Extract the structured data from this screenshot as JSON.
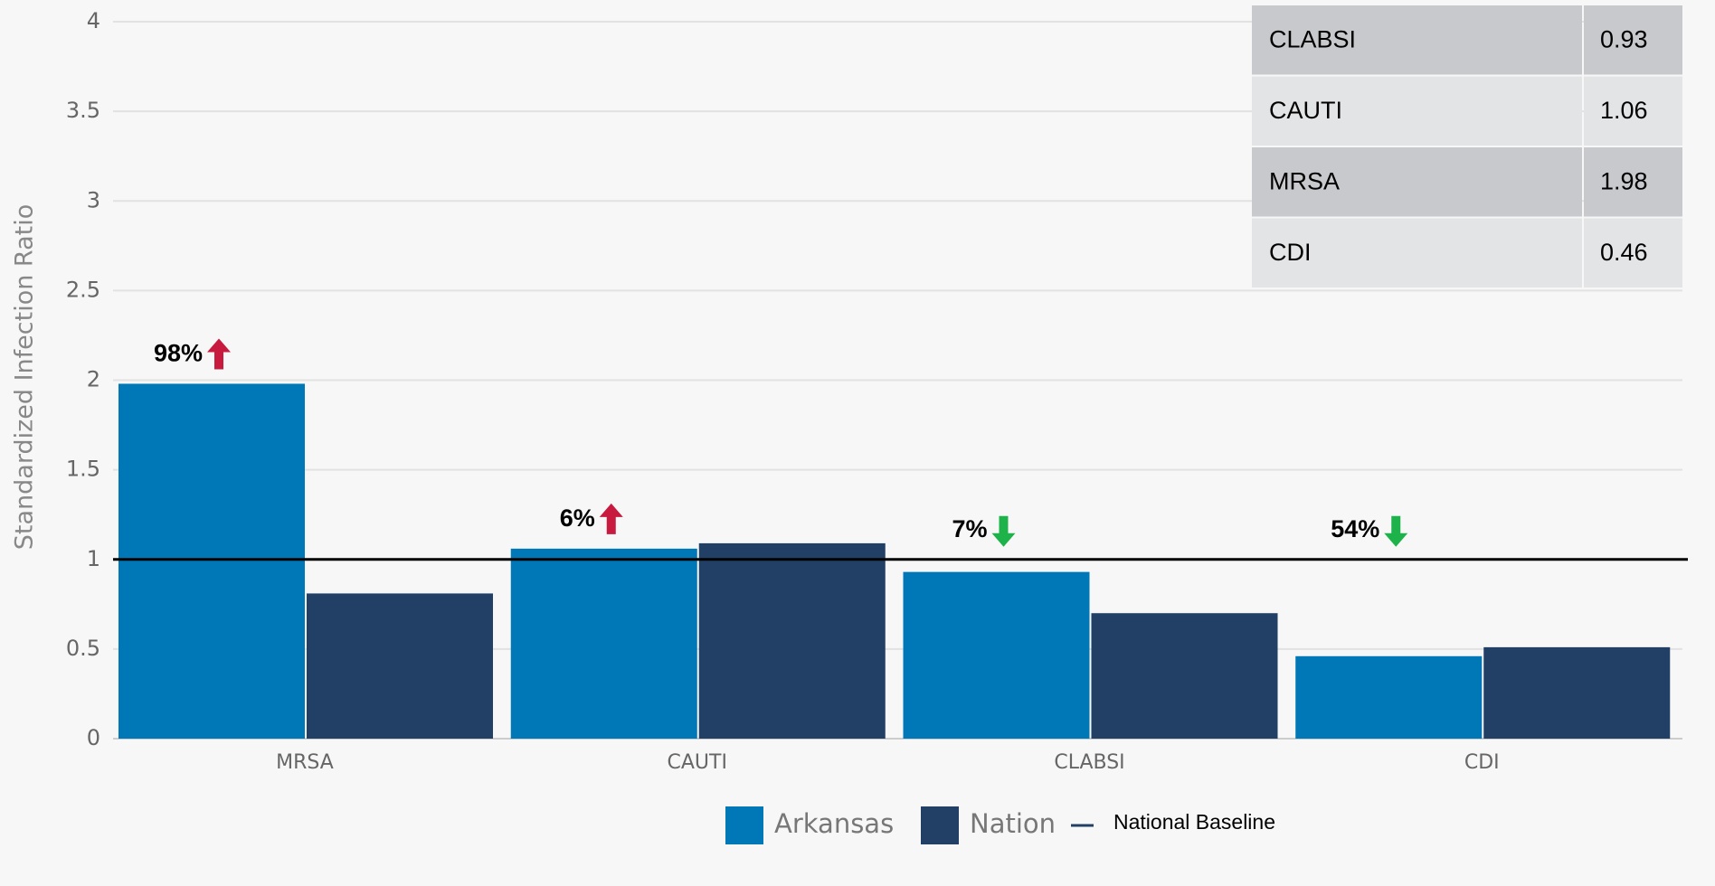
{
  "chart_data": {
    "type": "bar",
    "y_label": "Standardized Infection Ratio",
    "categories": [
      "MRSA",
      "CAUTI",
      "CLABSI",
      "CDI"
    ],
    "series": [
      {
        "name": "Arkansas",
        "color": "#0077b6",
        "values": [
          1.98,
          1.06,
          0.93,
          0.46
        ]
      },
      {
        "name": "Nation",
        "color": "#223f66",
        "values": [
          0.81,
          1.09,
          0.7,
          0.51
        ]
      }
    ],
    "baseline": {
      "name": "National Baseline",
      "value": 1,
      "color": "#000000"
    },
    "annotations": [
      {
        "text": "98%",
        "arrow": "up",
        "color": "#c8193f"
      },
      {
        "text": "6%",
        "arrow": "up",
        "color": "#c8193f"
      },
      {
        "text": "7%",
        "arrow": "down",
        "color": "#1db34a"
      },
      {
        "text": "54%",
        "arrow": "down",
        "color": "#1db34a"
      }
    ],
    "ylim": [
      0,
      4
    ],
    "yticks": [
      0,
      0.5,
      1,
      1.5,
      2,
      2.5,
      3,
      3.5,
      4
    ],
    "grid": true,
    "table": {
      "rows": [
        [
          "CLABSI",
          "0.93"
        ],
        [
          "CAUTI",
          "1.06"
        ],
        [
          "MRSA",
          "1.98"
        ],
        [
          "CDI",
          "0.46"
        ]
      ]
    }
  }
}
